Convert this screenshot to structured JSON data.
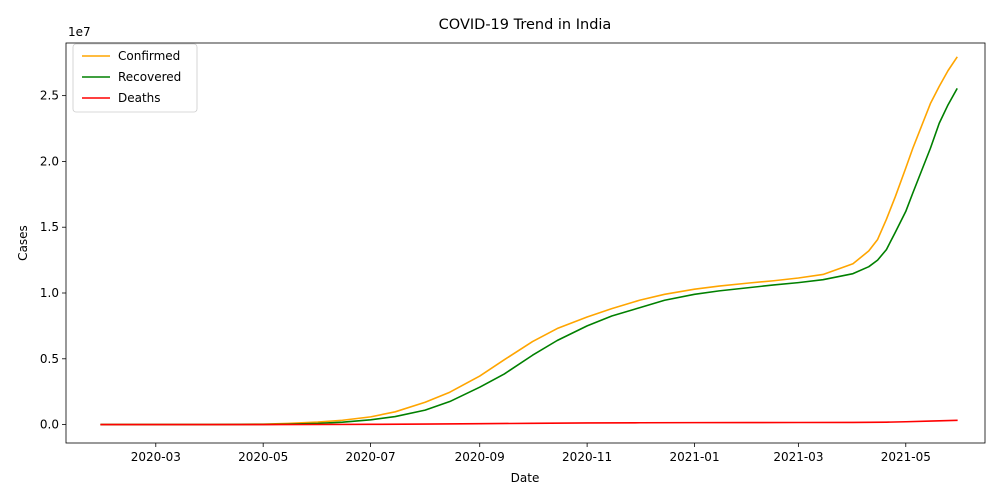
{
  "chart_data": {
    "type": "line",
    "title": "COVID-19 Trend in India",
    "xlabel": "Date",
    "ylabel": "Cases",
    "y_offset_label": "1e7",
    "grid": false,
    "legend_position": "upper left",
    "xlim": [
      "2020-01-10",
      "2021-06-15"
    ],
    "ylim": [
      -1400000,
      29000000
    ],
    "x_ticks": [
      {
        "date": "2020-03-01",
        "label": "2020-03"
      },
      {
        "date": "2020-05-01",
        "label": "2020-05"
      },
      {
        "date": "2020-07-01",
        "label": "2020-07"
      },
      {
        "date": "2020-09-01",
        "label": "2020-09"
      },
      {
        "date": "2020-11-01",
        "label": "2020-11"
      },
      {
        "date": "2021-01-01",
        "label": "2021-01"
      },
      {
        "date": "2021-03-01",
        "label": "2021-03"
      },
      {
        "date": "2021-05-01",
        "label": "2021-05"
      }
    ],
    "y_ticks": [
      {
        "value": 0,
        "label": "0.0"
      },
      {
        "value": 5000000,
        "label": "0.5"
      },
      {
        "value": 10000000,
        "label": "1.0"
      },
      {
        "value": 15000000,
        "label": "1.5"
      },
      {
        "value": 20000000,
        "label": "2.0"
      },
      {
        "value": 25000000,
        "label": "2.5"
      }
    ],
    "series": [
      {
        "name": "Confirmed",
        "color": "#ffa500",
        "points": [
          [
            "2020-01-30",
            0
          ],
          [
            "2020-03-01",
            0
          ],
          [
            "2020-04-01",
            2000
          ],
          [
            "2020-05-01",
            35000
          ],
          [
            "2020-05-15",
            85000
          ],
          [
            "2020-06-01",
            190000
          ],
          [
            "2020-06-15",
            330000
          ],
          [
            "2020-07-01",
            585000
          ],
          [
            "2020-07-15",
            970000
          ],
          [
            "2020-08-01",
            1700000
          ],
          [
            "2020-08-15",
            2460000
          ],
          [
            "2020-09-01",
            3690000
          ],
          [
            "2020-09-15",
            4930000
          ],
          [
            "2020-10-01",
            6310000
          ],
          [
            "2020-10-15",
            7300000
          ],
          [
            "2020-11-01",
            8180000
          ],
          [
            "2020-11-15",
            8810000
          ],
          [
            "2020-12-01",
            9460000
          ],
          [
            "2020-12-15",
            9900000
          ],
          [
            "2021-01-01",
            10290000
          ],
          [
            "2021-01-15",
            10530000
          ],
          [
            "2021-02-01",
            10760000
          ],
          [
            "2021-02-15",
            10930000
          ],
          [
            "2021-03-01",
            11140000
          ],
          [
            "2021-03-15",
            11410000
          ],
          [
            "2021-04-01",
            12220000
          ],
          [
            "2021-04-10",
            13200000
          ],
          [
            "2021-04-15",
            14070000
          ],
          [
            "2021-04-20",
            15600000
          ],
          [
            "2021-04-25",
            17300000
          ],
          [
            "2021-05-01",
            19500000
          ],
          [
            "2021-05-05",
            21000000
          ],
          [
            "2021-05-10",
            22700000
          ],
          [
            "2021-05-15",
            24400000
          ],
          [
            "2021-05-20",
            25700000
          ],
          [
            "2021-05-25",
            26900000
          ],
          [
            "2021-05-30",
            27900000
          ]
        ]
      },
      {
        "name": "Recovered",
        "color": "#008000",
        "points": [
          [
            "2020-01-30",
            0
          ],
          [
            "2020-03-01",
            0
          ],
          [
            "2020-04-01",
            200
          ],
          [
            "2020-05-01",
            9000
          ],
          [
            "2020-05-15",
            34000
          ],
          [
            "2020-06-01",
            91000
          ],
          [
            "2020-06-15",
            180000
          ],
          [
            "2020-07-01",
            360000
          ],
          [
            "2020-07-15",
            610000
          ],
          [
            "2020-08-01",
            1100000
          ],
          [
            "2020-08-15",
            1750000
          ],
          [
            "2020-09-01",
            2840000
          ],
          [
            "2020-09-15",
            3850000
          ],
          [
            "2020-10-01",
            5270000
          ],
          [
            "2020-10-15",
            6390000
          ],
          [
            "2020-11-01",
            7500000
          ],
          [
            "2020-11-15",
            8250000
          ],
          [
            "2020-12-01",
            8890000
          ],
          [
            "2020-12-15",
            9450000
          ],
          [
            "2021-01-01",
            9900000
          ],
          [
            "2021-01-15",
            10160000
          ],
          [
            "2021-02-01",
            10410000
          ],
          [
            "2021-02-15",
            10610000
          ],
          [
            "2021-03-01",
            10790000
          ],
          [
            "2021-03-15",
            11010000
          ],
          [
            "2021-04-01",
            11470000
          ],
          [
            "2021-04-10",
            12000000
          ],
          [
            "2021-04-15",
            12500000
          ],
          [
            "2021-04-20",
            13300000
          ],
          [
            "2021-04-25",
            14600000
          ],
          [
            "2021-05-01",
            16200000
          ],
          [
            "2021-05-05",
            17600000
          ],
          [
            "2021-05-10",
            19300000
          ],
          [
            "2021-05-15",
            21000000
          ],
          [
            "2021-05-20",
            22900000
          ],
          [
            "2021-05-25",
            24300000
          ],
          [
            "2021-05-30",
            25500000
          ]
        ]
      },
      {
        "name": "Deaths",
        "color": "#ff0000",
        "points": [
          [
            "2020-01-30",
            0
          ],
          [
            "2020-04-01",
            50
          ],
          [
            "2020-05-01",
            1150
          ],
          [
            "2020-06-01",
            5600
          ],
          [
            "2020-07-01",
            17800
          ],
          [
            "2020-08-01",
            37000
          ],
          [
            "2020-09-01",
            65000
          ],
          [
            "2020-10-01",
            98000
          ],
          [
            "2020-11-01",
            122000
          ],
          [
            "2020-12-01",
            138000
          ],
          [
            "2021-01-01",
            149000
          ],
          [
            "2021-02-01",
            154000
          ],
          [
            "2021-03-01",
            157000
          ],
          [
            "2021-04-01",
            163000
          ],
          [
            "2021-04-20",
            182000
          ],
          [
            "2021-05-01",
            215000
          ],
          [
            "2021-05-15",
            270000
          ],
          [
            "2021-05-30",
            325000
          ]
        ]
      }
    ]
  }
}
